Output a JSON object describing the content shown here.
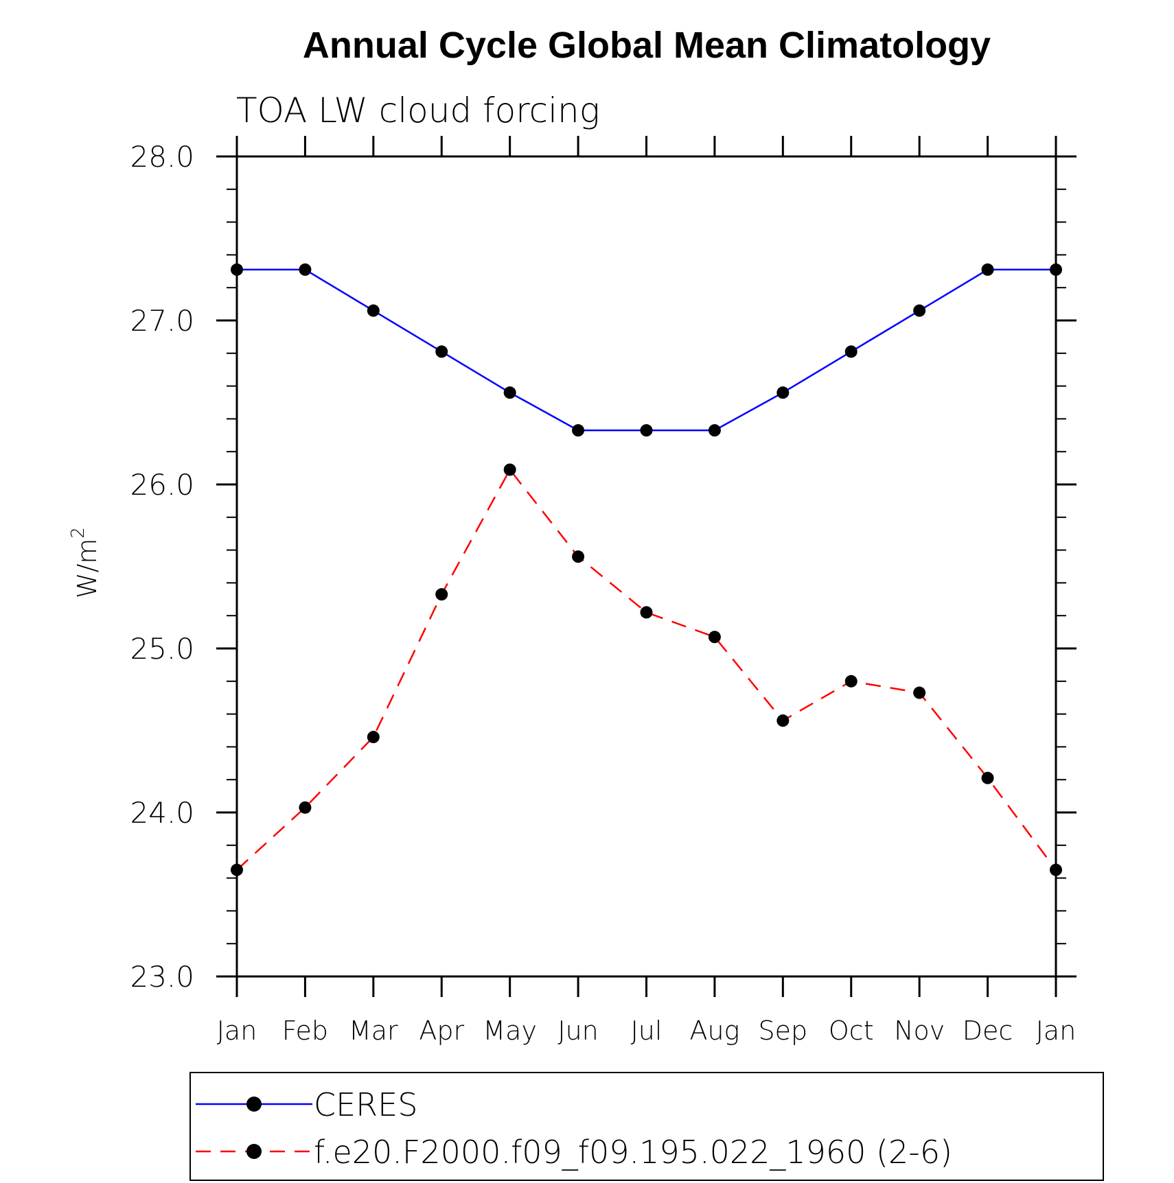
{
  "chart_data": {
    "type": "line",
    "title": "Annual Cycle Global Mean Climatology",
    "subtitle": "TOA LW cloud forcing",
    "xlabel": "",
    "ylabel": "W/m",
    "ylabel_superscript": "2",
    "ylim": [
      23.0,
      28.0
    ],
    "y_ticks": [
      "23.0",
      "24.0",
      "25.0",
      "26.0",
      "27.0",
      "28.0"
    ],
    "categories": [
      "Jan",
      "Feb",
      "Mar",
      "Apr",
      "May",
      "Jun",
      "Jul",
      "Aug",
      "Sep",
      "Oct",
      "Nov",
      "Dec",
      "Jan"
    ],
    "grid": false,
    "legend_position": "bottom",
    "series": [
      {
        "name": "CERES",
        "color": "#0000ff",
        "line_style": "solid",
        "marker": "filled-circle",
        "values": [
          27.31,
          27.31,
          27.06,
          26.81,
          26.56,
          26.33,
          26.33,
          26.33,
          26.56,
          26.81,
          27.06,
          27.31,
          27.31
        ]
      },
      {
        "name": "f.e20.F2000.f09_f09.195.022_1960 (2-6)",
        "color": "#ff0000",
        "line_style": "dashed",
        "marker": "filled-circle",
        "values": [
          23.65,
          24.03,
          24.46,
          25.33,
          26.09,
          25.56,
          25.22,
          25.07,
          24.56,
          24.8,
          24.73,
          24.21,
          23.65
        ]
      }
    ]
  }
}
